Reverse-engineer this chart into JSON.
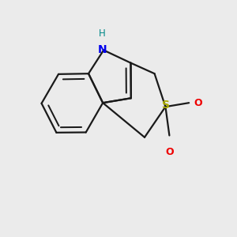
{
  "background_color": "#ebebeb",
  "bond_color": "#1a1a1a",
  "N_color": "#0000ee",
  "H_color": "#008888",
  "S_color": "#aaaa00",
  "O_color": "#ee0000",
  "figsize": [
    3.0,
    3.0
  ],
  "dpi": 100,
  "xlim": [
    0.05,
    0.95
  ],
  "ylim": [
    0.1,
    0.9
  ]
}
